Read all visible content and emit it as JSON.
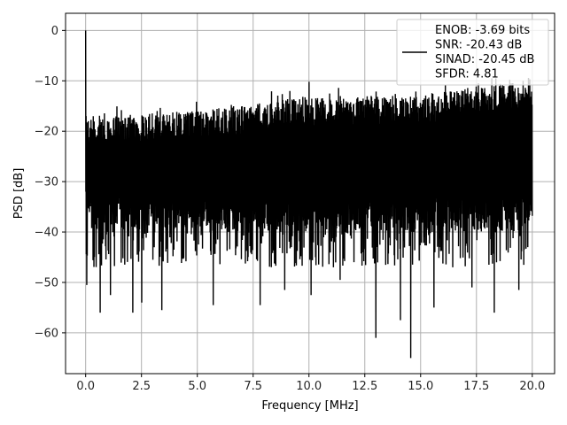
{
  "chart_data": {
    "type": "line",
    "title": "",
    "xlabel": "Frequency [MHz]",
    "ylabel": "PSD [dB]",
    "xlim": [
      -0.9,
      21.0
    ],
    "ylim": [
      -68.1,
      3.4
    ],
    "xticks": [
      0.0,
      2.5,
      5.0,
      7.5,
      10.0,
      12.5,
      15.0,
      17.5,
      20.0
    ],
    "xtick_labels": [
      "0.0",
      "2.5",
      "5.0",
      "7.5",
      "10.0",
      "12.5",
      "15.0",
      "17.5",
      "20.0"
    ],
    "yticks": [
      0,
      -10,
      -20,
      -30,
      -40,
      -50,
      -60
    ],
    "ytick_labels": [
      "0",
      "−10",
      "−20",
      "−30",
      "−40",
      "−50",
      "−60"
    ],
    "grid": true,
    "legend_position": "top-right",
    "series": [
      {
        "name": "ENOB: -3.69 bits\nSNR: -20.43 dB\nSINAD: -20.45 dB\nSFDR: 4.81",
        "legend_lines": [
          "ENOB: -3.69 bits",
          "SNR: -20.43 dB",
          "SINAD: -20.45 dB",
          "SFDR: 4.81"
        ],
        "color": "#000000",
        "x_start": 0.0,
        "x_end": 20.0,
        "dc_peak": 0.0,
        "trend_top": [
          [
            0.0,
            -17
          ],
          [
            5.0,
            -16
          ],
          [
            10.0,
            -13
          ],
          [
            15.0,
            -13
          ],
          [
            17.5,
            -11
          ],
          [
            20.0,
            -10
          ]
        ],
        "trend_floor": [
          [
            0.0,
            -32
          ],
          [
            5.0,
            -33
          ],
          [
            10.0,
            -33
          ],
          [
            15.0,
            -33
          ],
          [
            20.0,
            -33
          ]
        ],
        "noise_min_floor": -47,
        "dips": [
          {
            "x": 0.05,
            "y": -50.5
          },
          {
            "x": 0.65,
            "y": -56.0
          },
          {
            "x": 1.1,
            "y": -52.5
          },
          {
            "x": 2.1,
            "y": -56.0
          },
          {
            "x": 2.5,
            "y": -54.0
          },
          {
            "x": 3.4,
            "y": -55.5
          },
          {
            "x": 5.7,
            "y": -54.5
          },
          {
            "x": 7.8,
            "y": -54.5
          },
          {
            "x": 8.9,
            "y": -51.5
          },
          {
            "x": 10.1,
            "y": -52.5
          },
          {
            "x": 11.4,
            "y": -49.5
          },
          {
            "x": 13.0,
            "y": -61.0
          },
          {
            "x": 14.1,
            "y": -57.5
          },
          {
            "x": 14.55,
            "y": -65.0
          },
          {
            "x": 15.6,
            "y": -55.0
          },
          {
            "x": 17.3,
            "y": -51.0
          },
          {
            "x": 18.3,
            "y": -56.0
          },
          {
            "x": 19.4,
            "y": -51.5
          }
        ],
        "peaks": [
          {
            "x": 10.0,
            "y": -10.2
          },
          {
            "x": 12.8,
            "y": -13.0
          },
          {
            "x": 15.8,
            "y": -13.5
          },
          {
            "x": 17.6,
            "y": -10.5
          },
          {
            "x": 18.2,
            "y": -9.5
          },
          {
            "x": 19.0,
            "y": -9.8
          },
          {
            "x": 19.6,
            "y": -10.0
          },
          {
            "x": 19.9,
            "y": -9.7
          }
        ],
        "num_points": 2000
      }
    ]
  }
}
